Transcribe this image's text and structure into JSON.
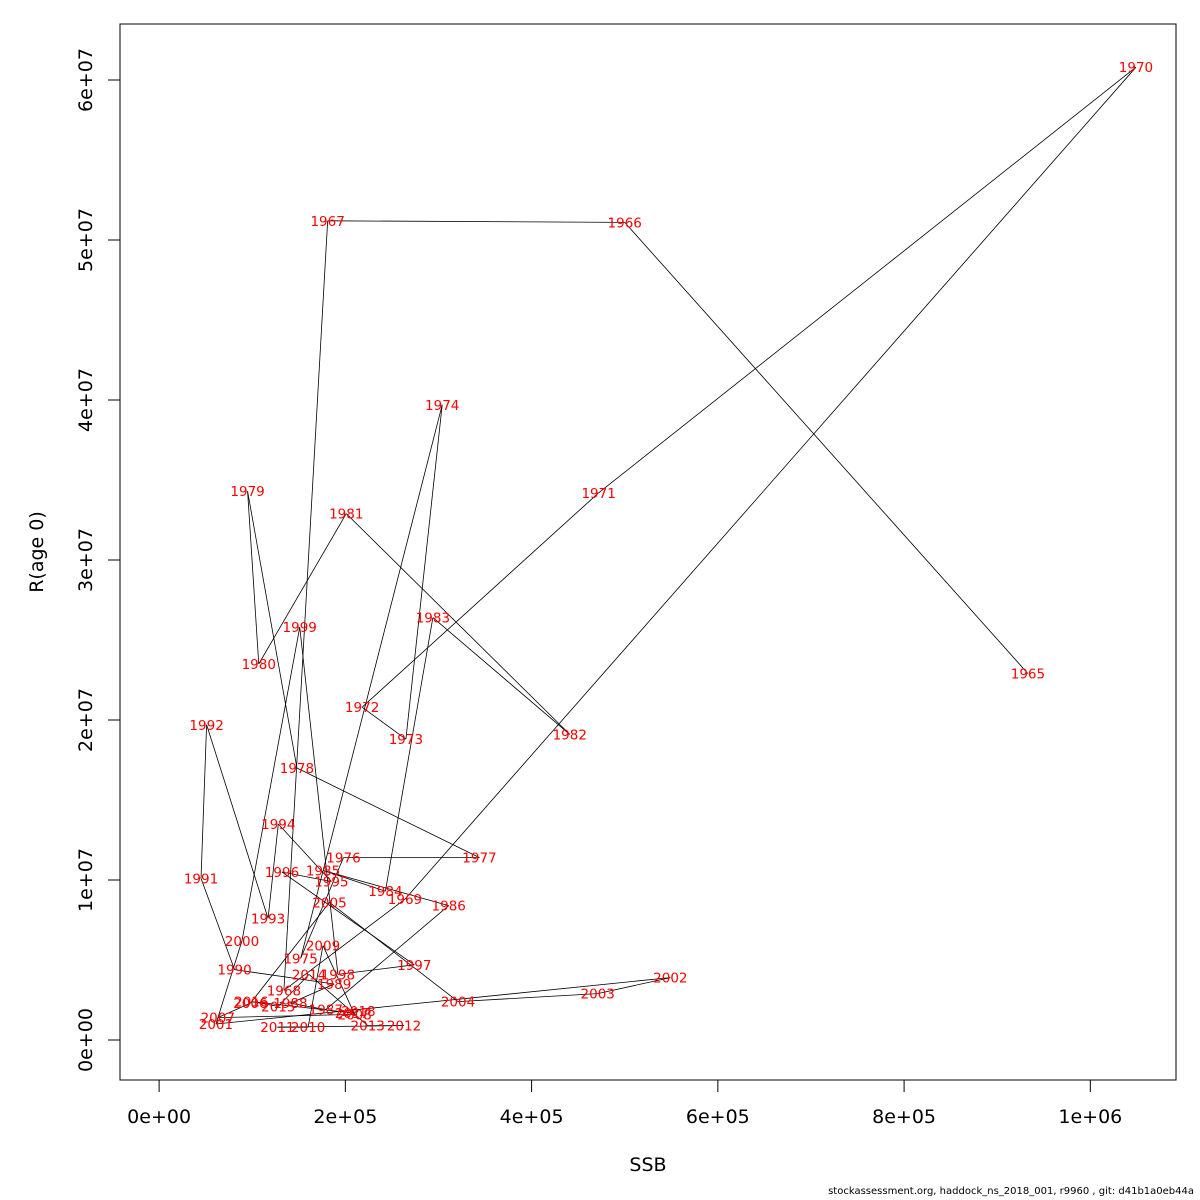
{
  "chart_data": {
    "type": "line",
    "title": "",
    "xlabel": "SSB",
    "ylabel": "R(age 0)",
    "xlim": [
      -42000,
      1092000
    ],
    "ylim": [
      -2500000,
      63500000
    ],
    "x_ticks": [
      {
        "value": 0,
        "label": "0e+00"
      },
      {
        "value": 200000,
        "label": "2e+05"
      },
      {
        "value": 400000,
        "label": "4e+05"
      },
      {
        "value": 600000,
        "label": "6e+05"
      },
      {
        "value": 800000,
        "label": "8e+05"
      },
      {
        "value": 1000000,
        "label": "1e+06"
      }
    ],
    "y_ticks": [
      {
        "value": 0,
        "label": "0e+00"
      },
      {
        "value": 10000000,
        "label": "1e+07"
      },
      {
        "value": 20000000,
        "label": "2e+07"
      },
      {
        "value": 30000000,
        "label": "3e+07"
      },
      {
        "value": 40000000,
        "label": "4e+07"
      },
      {
        "value": 50000000,
        "label": "5e+07"
      },
      {
        "value": 60000000,
        "label": "6e+07"
      }
    ],
    "grid": false,
    "line_color": "#000000",
    "label_color": "#ff0000",
    "points": [
      {
        "label": "1965",
        "x": 933000,
        "y": 22900000
      },
      {
        "label": "1966",
        "x": 500000,
        "y": 51100000
      },
      {
        "label": "1967",
        "x": 181000,
        "y": 51200000
      },
      {
        "label": "1968",
        "x": 134000,
        "y": 3100000
      },
      {
        "label": "1969",
        "x": 264000,
        "y": 8800000
      },
      {
        "label": "1970",
        "x": 1049000,
        "y": 60800000
      },
      {
        "label": "1971",
        "x": 472000,
        "y": 34200000
      },
      {
        "label": "1972",
        "x": 218000,
        "y": 20800000
      },
      {
        "label": "1973",
        "x": 265000,
        "y": 18800000
      },
      {
        "label": "1974",
        "x": 304000,
        "y": 39700000
      },
      {
        "label": "1975",
        "x": 152000,
        "y": 5100000
      },
      {
        "label": "1976",
        "x": 198000,
        "y": 11400000
      },
      {
        "label": "1977",
        "x": 344000,
        "y": 11400000
      },
      {
        "label": "1978",
        "x": 148000,
        "y": 17000000
      },
      {
        "label": "1979",
        "x": 95000,
        "y": 34300000
      },
      {
        "label": "1980",
        "x": 107000,
        "y": 23500000
      },
      {
        "label": "1981",
        "x": 201000,
        "y": 32900000
      },
      {
        "label": "1982",
        "x": 441000,
        "y": 19100000
      },
      {
        "label": "1983",
        "x": 294000,
        "y": 26400000
      },
      {
        "label": "1984",
        "x": 243000,
        "y": 9300000
      },
      {
        "label": "1985",
        "x": 176000,
        "y": 10600000
      },
      {
        "label": "1986",
        "x": 311000,
        "y": 8400000
      },
      {
        "label": "1987",
        "x": 179000,
        "y": 1900000
      },
      {
        "label": "1988",
        "x": 141000,
        "y": 2300000
      },
      {
        "label": "1989",
        "x": 188000,
        "y": 3500000
      },
      {
        "label": "1990",
        "x": 81000,
        "y": 4400000
      },
      {
        "label": "1991",
        "x": 45000,
        "y": 10100000
      },
      {
        "label": "1992",
        "x": 51000,
        "y": 19700000
      },
      {
        "label": "1993",
        "x": 117000,
        "y": 7600000
      },
      {
        "label": "1994",
        "x": 128000,
        "y": 13500000
      },
      {
        "label": "1995",
        "x": 185000,
        "y": 9900000
      },
      {
        "label": "1996",
        "x": 132000,
        "y": 10500000
      },
      {
        "label": "1997",
        "x": 274000,
        "y": 4700000
      },
      {
        "label": "1998",
        "x": 192000,
        "y": 4100000
      },
      {
        "label": "1999",
        "x": 151000,
        "y": 25800000
      },
      {
        "label": "2000",
        "x": 89000,
        "y": 6200000
      },
      {
        "label": "2001",
        "x": 61000,
        "y": 1000000
      },
      {
        "label": "2002",
        "x": 549000,
        "y": 3900000
      },
      {
        "label": "2003",
        "x": 471000,
        "y": 2900000
      },
      {
        "label": "2004",
        "x": 321000,
        "y": 2400000
      },
      {
        "label": "2005",
        "x": 183000,
        "y": 8600000
      },
      {
        "label": "2006",
        "x": 98000,
        "y": 2300000
      },
      {
        "label": "2007",
        "x": 63000,
        "y": 1400000
      },
      {
        "label": "2008",
        "x": 210000,
        "y": 1600000
      },
      {
        "label": "2009",
        "x": 176000,
        "y": 5900000
      },
      {
        "label": "2010",
        "x": 160000,
        "y": 800000
      },
      {
        "label": "2011",
        "x": 127000,
        "y": 800000
      },
      {
        "label": "2012",
        "x": 263000,
        "y": 900000
      },
      {
        "label": "2013",
        "x": 224000,
        "y": 900000
      },
      {
        "label": "2014",
        "x": 161000,
        "y": 4100000
      },
      {
        "label": "2015",
        "x": 128000,
        "y": 2100000
      },
      {
        "label": "2016",
        "x": 99000,
        "y": 2400000
      },
      {
        "label": "2017",
        "x": 207000,
        "y": 1700000
      },
      {
        "label": "2018",
        "x": 214000,
        "y": 1800000
      }
    ]
  },
  "footer_text": "stockassessment.org, haddock_ns_2018_001, r9960 , git: d41b1a0eb44a"
}
